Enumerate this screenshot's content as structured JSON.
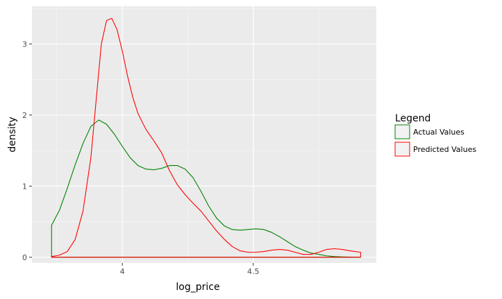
{
  "chart_data": {
    "type": "area",
    "title": "",
    "xlabel": "log_price",
    "ylabel": "density",
    "xlim": [
      3.655,
      4.97
    ],
    "ylim": [
      -0.08,
      3.53
    ],
    "x_ticks": [
      {
        "value": 4,
        "label": "4"
      },
      {
        "value": 4.5,
        "label": "4.5"
      }
    ],
    "y_ticks": [
      {
        "value": 0,
        "label": "0"
      },
      {
        "value": 1,
        "label": "1"
      },
      {
        "value": 2,
        "label": "2"
      },
      {
        "value": 3,
        "label": "3"
      }
    ],
    "grid": true,
    "legend": {
      "title": "Legend",
      "position": "right"
    },
    "series": [
      {
        "name": "Actual Values",
        "color": "#008000",
        "points": [
          [
            3.73,
            0.45
          ],
          [
            3.76,
            0.66
          ],
          [
            3.79,
            0.97
          ],
          [
            3.82,
            1.3
          ],
          [
            3.85,
            1.6
          ],
          [
            3.88,
            1.84
          ],
          [
            3.91,
            1.93
          ],
          [
            3.94,
            1.87
          ],
          [
            3.97,
            1.73
          ],
          [
            4.0,
            1.56
          ],
          [
            4.03,
            1.4
          ],
          [
            4.06,
            1.29
          ],
          [
            4.09,
            1.24
          ],
          [
            4.12,
            1.23
          ],
          [
            4.15,
            1.25
          ],
          [
            4.18,
            1.29
          ],
          [
            4.21,
            1.29
          ],
          [
            4.24,
            1.24
          ],
          [
            4.27,
            1.12
          ],
          [
            4.3,
            0.93
          ],
          [
            4.33,
            0.72
          ],
          [
            4.36,
            0.55
          ],
          [
            4.39,
            0.44
          ],
          [
            4.42,
            0.39
          ],
          [
            4.45,
            0.38
          ],
          [
            4.48,
            0.39
          ],
          [
            4.51,
            0.4
          ],
          [
            4.54,
            0.39
          ],
          [
            4.57,
            0.35
          ],
          [
            4.6,
            0.29
          ],
          [
            4.63,
            0.22
          ],
          [
            4.66,
            0.15
          ],
          [
            4.69,
            0.1
          ],
          [
            4.72,
            0.06
          ],
          [
            4.75,
            0.04
          ],
          [
            4.78,
            0.02
          ],
          [
            4.81,
            0.01
          ],
          [
            4.84,
            0.005
          ],
          [
            4.87,
            0.002
          ],
          [
            4.91,
            0.001
          ]
        ]
      },
      {
        "name": "Predicted Values",
        "color": "#ff0000",
        "points": [
          [
            3.73,
            0.01
          ],
          [
            3.76,
            0.03
          ],
          [
            3.79,
            0.08
          ],
          [
            3.82,
            0.25
          ],
          [
            3.85,
            0.65
          ],
          [
            3.88,
            1.4
          ],
          [
            3.9,
            2.2
          ],
          [
            3.92,
            3.0
          ],
          [
            3.94,
            3.33
          ],
          [
            3.96,
            3.36
          ],
          [
            3.98,
            3.2
          ],
          [
            4.0,
            2.9
          ],
          [
            4.02,
            2.55
          ],
          [
            4.04,
            2.25
          ],
          [
            4.06,
            2.02
          ],
          [
            4.09,
            1.8
          ],
          [
            4.12,
            1.64
          ],
          [
            4.15,
            1.47
          ],
          [
            4.18,
            1.22
          ],
          [
            4.21,
            1.02
          ],
          [
            4.24,
            0.88
          ],
          [
            4.27,
            0.76
          ],
          [
            4.3,
            0.65
          ],
          [
            4.33,
            0.51
          ],
          [
            4.36,
            0.37
          ],
          [
            4.39,
            0.25
          ],
          [
            4.42,
            0.15
          ],
          [
            4.45,
            0.09
          ],
          [
            4.48,
            0.07
          ],
          [
            4.51,
            0.07
          ],
          [
            4.54,
            0.08
          ],
          [
            4.57,
            0.1
          ],
          [
            4.6,
            0.11
          ],
          [
            4.63,
            0.1
          ],
          [
            4.66,
            0.07
          ],
          [
            4.69,
            0.04
          ],
          [
            4.72,
            0.04
          ],
          [
            4.75,
            0.07
          ],
          [
            4.78,
            0.11
          ],
          [
            4.81,
            0.12
          ],
          [
            4.84,
            0.11
          ],
          [
            4.87,
            0.09
          ],
          [
            4.91,
            0.07
          ]
        ]
      }
    ]
  }
}
